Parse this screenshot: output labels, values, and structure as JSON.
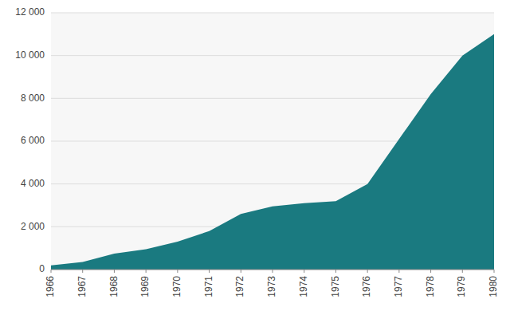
{
  "chart_data": {
    "type": "area",
    "x": [
      1966,
      1967,
      1968,
      1969,
      1970,
      1971,
      1972,
      1973,
      1974,
      1975,
      1976,
      1977,
      1978,
      1979,
      1980
    ],
    "values": [
      200,
      350,
      750,
      950,
      1300,
      1800,
      2600,
      2950,
      3100,
      3200,
      4000,
      6100,
      8200,
      10000,
      11000
    ],
    "color": "#1a7a80",
    "xlim": [
      1966,
      1980
    ],
    "xticks": [
      1966,
      1967,
      1968,
      1969,
      1970,
      1971,
      1972,
      1973,
      1974,
      1975,
      1976,
      1977,
      1978,
      1979,
      1980
    ],
    "ylim": [
      0,
      12000
    ],
    "yticks": [
      0,
      {
        "value": 2000,
        "label": "2 000"
      },
      {
        "value": 4000,
        "label": "4 000"
      },
      {
        "value": 6000,
        "label": "6 000"
      },
      {
        "value": 8000,
        "label": "8 000"
      },
      {
        "value": 10000,
        "label": "10 000"
      },
      {
        "value": 12000,
        "label": "12 000"
      }
    ],
    "grid": true
  }
}
